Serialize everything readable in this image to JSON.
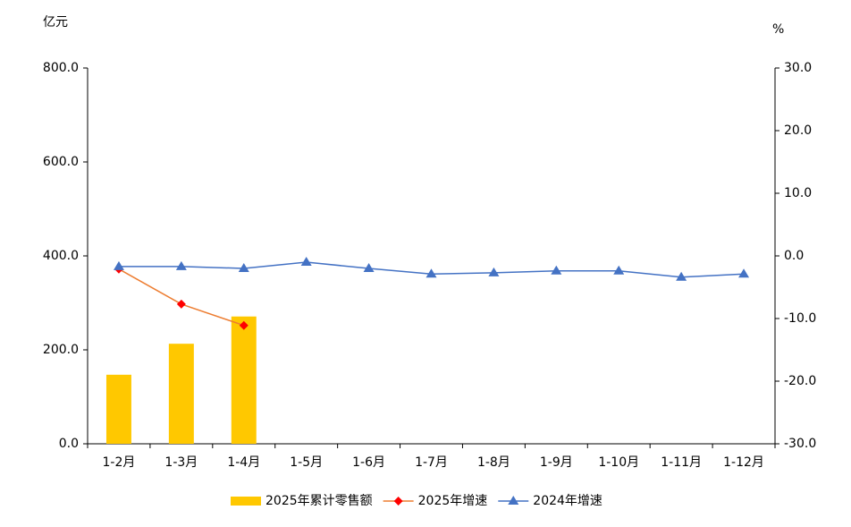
{
  "chart_data": {
    "type": "combo",
    "y_label": "亿元",
    "y2_label": "%",
    "categories": [
      "1-2月",
      "1-3月",
      "1-4月",
      "1-5月",
      "1-6月",
      "1-7月",
      "1-8月",
      "1-9月",
      "1-10月",
      "1-11月",
      "1-12月"
    ],
    "series": [
      {
        "name": "2025年累计零售额",
        "type": "bar",
        "color": "#FFC800",
        "values": [
          147,
          213,
          271,
          null,
          null,
          null,
          null,
          null,
          null,
          null,
          null
        ]
      },
      {
        "name": "2025年增速",
        "type": "line",
        "marker": "diamond",
        "color": "#ED7D31",
        "marker_color": "#FF0000",
        "axis": "y2",
        "values": [
          -2.1,
          -7.7,
          -11.1,
          null,
          null,
          null,
          null,
          null,
          null,
          null,
          null
        ]
      },
      {
        "name": "2024年增速",
        "type": "line",
        "marker": "triangle",
        "color": "#4472C4",
        "marker_color": "#4472C4",
        "axis": "y2",
        "values": [
          -1.7,
          -1.7,
          -2.0,
          -1.0,
          -2.0,
          -2.9,
          -2.7,
          -2.4,
          -2.4,
          -3.4,
          -2.9
        ]
      }
    ],
    "ylim": [
      0,
      800
    ],
    "yticks": [
      {
        "value": 0,
        "label": "0.0"
      },
      {
        "value": 200,
        "label": "200.0"
      },
      {
        "value": 400,
        "label": "400.0"
      },
      {
        "value": 600,
        "label": "600.0"
      },
      {
        "value": 800,
        "label": "800.0"
      }
    ],
    "y2lim": [
      -30,
      30
    ],
    "y2ticks": [
      {
        "value": -30,
        "label": "-30.0"
      },
      {
        "value": -20,
        "label": "-20.0"
      },
      {
        "value": -10,
        "label": "-10.0"
      },
      {
        "value": 0,
        "label": "0.0"
      },
      {
        "value": 10,
        "label": "10.0"
      },
      {
        "value": 20,
        "label": "20.0"
      },
      {
        "value": 30,
        "label": "30.0"
      }
    ]
  }
}
